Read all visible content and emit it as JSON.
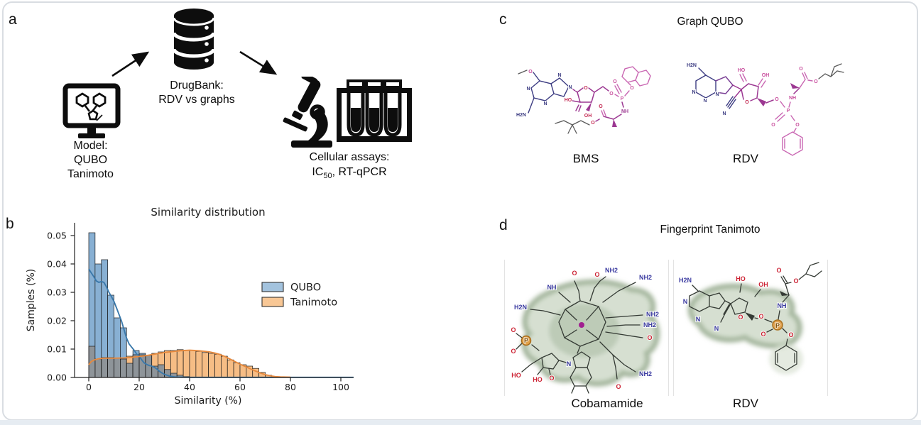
{
  "page": {
    "background": "#ffffff",
    "card_border": "#d9dde2"
  },
  "panel_a": {
    "label": "a",
    "model_caption": [
      "Model:",
      "QUBO",
      "Tanimoto"
    ],
    "db_caption": [
      "DrugBank:",
      "RDV vs graphs"
    ],
    "assay_caption_line1": "Cellular assays:",
    "assay_ic_prefix": "IC",
    "assay_ic_sub": "50",
    "assay_rest": ",  RT-qPCR"
  },
  "panel_b": {
    "label": "b"
  },
  "chart_data": {
    "type": "histogram",
    "title": "Similarity distribution",
    "xlabel": "Similarity (%)",
    "ylabel": "Samples (%)",
    "x_ticks": [
      0,
      20,
      40,
      60,
      80,
      100
    ],
    "y_ticks": [
      "0.00",
      "0.01",
      "0.02",
      "0.03",
      "0.04",
      "0.05"
    ],
    "xlim": [
      -5.6,
      105
    ],
    "ylim": [
      0,
      0.0545
    ],
    "bin_width": 2.5,
    "bin_start": 0,
    "grid": false,
    "legend_position": "center right",
    "overlap_color": "#8e9499",
    "series": [
      {
        "name": "QUBO",
        "line_color": "#3b79ab",
        "bar_fill": "#88b0d3",
        "legend_fill": "#a3c3de",
        "values": [
          0.051,
          0.04,
          0.0415,
          0.029,
          0.021,
          0.0175,
          0.005,
          0.0095,
          0.0085,
          0.0078,
          0.004,
          0.0045,
          0.0028,
          0.0015,
          0.0008,
          0.0003,
          0,
          0,
          0,
          0,
          0,
          0,
          0,
          0,
          0,
          0,
          0,
          0,
          0,
          0
        ]
      },
      {
        "name": "Tanimoto",
        "line_color": "#e78a3e",
        "bar_fill": "#f6bd85",
        "legend_fill": "#f8c795",
        "values": [
          0.011,
          0.0065,
          0.007,
          0.007,
          0.0068,
          0.0065,
          0.0075,
          0.008,
          0.008,
          0.0078,
          0.0085,
          0.009,
          0.0095,
          0.0095,
          0.0098,
          0.0096,
          0.0095,
          0.0092,
          0.0088,
          0.0085,
          0.0082,
          0.0075,
          0.0062,
          0.0052,
          0.0045,
          0.004,
          0.0032,
          0.0018,
          0.0008,
          0.0003
        ]
      }
    ],
    "kde": [
      {
        "name": "QUBO",
        "color": "#3b79ab",
        "points": [
          [
            0,
            0.0382
          ],
          [
            2,
            0.0355
          ],
          [
            3,
            0.034
          ],
          [
            4,
            0.0335
          ],
          [
            5,
            0.0338
          ],
          [
            6,
            0.0335
          ],
          [
            7,
            0.032
          ],
          [
            8,
            0.03
          ],
          [
            9,
            0.0285
          ],
          [
            10,
            0.0268
          ],
          [
            11,
            0.0245
          ],
          [
            12,
            0.0222
          ],
          [
            13,
            0.0198
          ],
          [
            14,
            0.0168
          ],
          [
            15,
            0.0138
          ],
          [
            16,
            0.0118
          ],
          [
            17,
            0.0107
          ],
          [
            18,
            0.0096
          ],
          [
            19,
            0.0083
          ],
          [
            20,
            0.0075
          ],
          [
            21,
            0.0062
          ],
          [
            22,
            0.0051
          ],
          [
            23,
            0.0046
          ],
          [
            24,
            0.0042
          ],
          [
            25,
            0.004
          ],
          [
            26,
            0.0036
          ],
          [
            27,
            0.003
          ],
          [
            28,
            0.0022
          ],
          [
            29,
            0.0016
          ],
          [
            30,
            0.0011
          ],
          [
            32,
            0.0005
          ],
          [
            34,
            0.0002
          ],
          [
            36,
            0.0001
          ],
          [
            40,
            5e-05
          ],
          [
            105,
            5e-05
          ]
        ]
      },
      {
        "name": "Tanimoto",
        "color": "#e78a3e",
        "points": [
          [
            0,
            0.0045
          ],
          [
            1,
            0.0056
          ],
          [
            2,
            0.0061
          ],
          [
            3,
            0.0064
          ],
          [
            4,
            0.0066
          ],
          [
            6,
            0.0068
          ],
          [
            10,
            0.0068
          ],
          [
            14,
            0.0069
          ],
          [
            16,
            0.007
          ],
          [
            18,
            0.0072
          ],
          [
            20,
            0.0074
          ],
          [
            22,
            0.0076
          ],
          [
            24,
            0.0079
          ],
          [
            26,
            0.0082
          ],
          [
            28,
            0.0085
          ],
          [
            30,
            0.0088
          ],
          [
            32,
            0.009
          ],
          [
            34,
            0.0092
          ],
          [
            36,
            0.0094
          ],
          [
            38,
            0.0095
          ],
          [
            40,
            0.0096
          ],
          [
            42,
            0.0095
          ],
          [
            44,
            0.0094
          ],
          [
            46,
            0.0092
          ],
          [
            48,
            0.009
          ],
          [
            50,
            0.0086
          ],
          [
            52,
            0.0081
          ],
          [
            54,
            0.0074
          ],
          [
            56,
            0.0065
          ],
          [
            58,
            0.0056
          ],
          [
            60,
            0.0047
          ],
          [
            62,
            0.0039
          ],
          [
            64,
            0.0031
          ],
          [
            66,
            0.0023
          ],
          [
            68,
            0.0016
          ],
          [
            70,
            0.001
          ],
          [
            72,
            0.0006
          ],
          [
            74,
            0.0003
          ],
          [
            76,
            0.0002
          ],
          [
            80,
            0.0001
          ]
        ]
      }
    ]
  },
  "panel_c": {
    "label": "c",
    "title": "Graph QUBO",
    "bms": {
      "caption": "BMS",
      "atoms": [
        "O",
        "N",
        "N",
        "N",
        "N",
        "H2N",
        "HO",
        "O",
        "OH",
        "O",
        "O",
        "P",
        "O",
        "NH",
        "O",
        "O"
      ]
    },
    "rdv": {
      "caption": "RDV",
      "atoms": [
        "H2N",
        "N",
        "N",
        "N",
        "HO",
        "OH",
        "O",
        "N",
        "O",
        "P",
        "O",
        "O",
        "NH",
        "O",
        "O"
      ]
    }
  },
  "panel_d": {
    "label": "d",
    "title": "Fingerprint Tanimoto",
    "cobamamide": {
      "caption": "Cobamamide",
      "atoms": [
        "O",
        "NH",
        "O",
        "NH2",
        "NH2",
        "H2N",
        "NH2",
        "NH2",
        "O",
        "O",
        "P",
        "O",
        "HO",
        "HO",
        "O",
        "N",
        "NH2",
        "O"
      ]
    },
    "rdv": {
      "caption": "RDV",
      "atoms": [
        "H2N",
        "N",
        "N",
        "HO",
        "OH",
        "N",
        "O",
        "O",
        "P",
        "O",
        "O",
        "NH",
        "O",
        "O"
      ]
    }
  }
}
